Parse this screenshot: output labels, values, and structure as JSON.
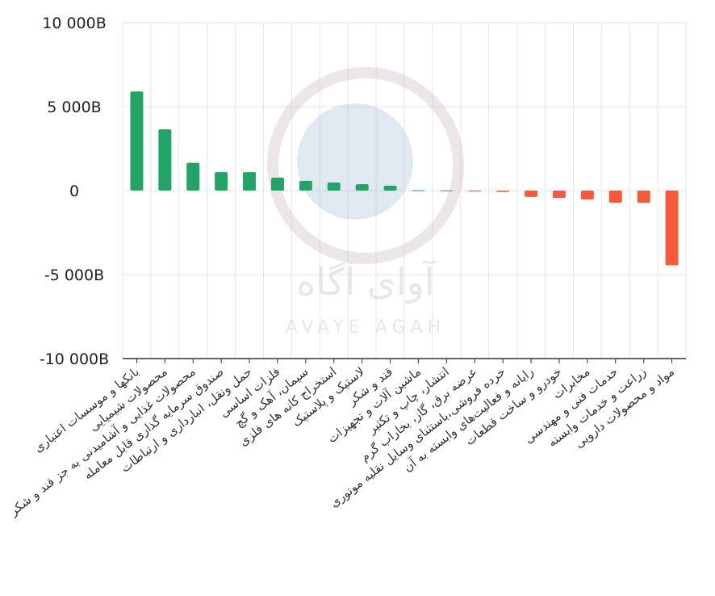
{
  "chart_data": {
    "type": "bar",
    "categories": [
      "بانکها و موسسات اعتباری",
      "محصولات شیمیایی",
      "محصولات غذایی و آشامیدنی به جز قند و شکر",
      "صندوق سرمایه گذاری قابل معامله",
      "حمل ونقل، انبارداری و ارتباطات",
      "فلزات اساسی",
      "سیمان، آهک و گچ",
      "استخراج کانه های فلزی",
      "لاستیک و پلاستیک",
      "قند و شکر",
      "ماشین آلات و تجهیزات",
      "انتشار، چاپ و تکثیر",
      "عرضه برق، گاز، بخاراب گرم",
      "خرده فروشی،باستثنای وسایل نقلیه موتوری",
      "رایانه و فعالیت‌های وابسته به آن",
      "خودرو و ساخت قطعات",
      "مخابرات",
      "خدمات فنی و مهندسی",
      "زراعت و خدمات وابسته",
      "مواد و محصولات دارویی"
    ],
    "values": [
      5900,
      3650,
      1650,
      1100,
      1100,
      770,
      580,
      480,
      380,
      290,
      20,
      10,
      -20,
      -80,
      -380,
      -430,
      -530,
      -720,
      -730,
      -4450
    ],
    "color": "#21a464",
    "negative_color": "#f65a3b",
    "ylim": [
      -10000,
      10000
    ],
    "yticks": [
      {
        "value": 10000,
        "label": "10 000B"
      },
      {
        "value": 5000,
        "label": "5 000B"
      },
      0,
      {
        "value": -5000,
        "label": "-5 000B"
      },
      {
        "value": -10000,
        "label": "-10 000B"
      }
    ],
    "grid": true,
    "watermark": {
      "text": "آوای آگاه",
      "subtext": "AVAYE AGAH"
    }
  }
}
